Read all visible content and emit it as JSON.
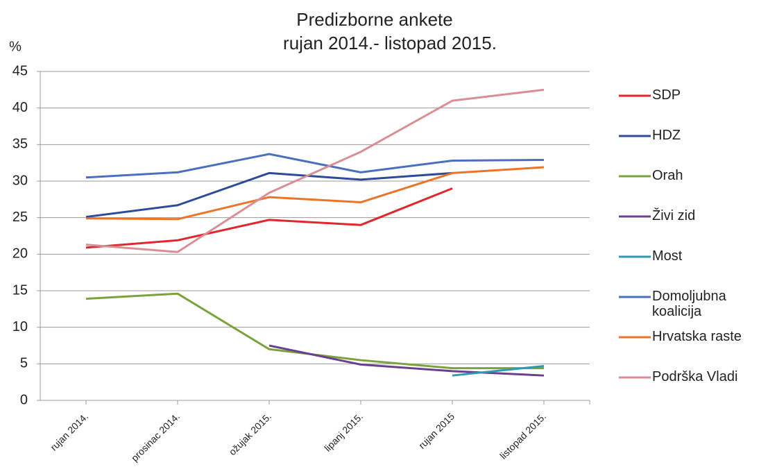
{
  "chart_data": {
    "type": "line",
    "title": [
      "Predizborne ankete",
      "rujan 2014.- listopad 2015."
    ],
    "y_label": "%",
    "categories": [
      "rujan 2014.",
      "prosinac 2014.",
      "ožujak 2015.",
      "lipanj 2015.",
      "rujan 2015",
      "listopad 2015."
    ],
    "series": [
      {
        "name": "SDP",
        "color": "#e3262b",
        "values": [
          20.9,
          21.9,
          24.7,
          24.0,
          29.0,
          null
        ]
      },
      {
        "name": "HDZ",
        "color": "#2e4a9b",
        "values": [
          25.1,
          26.7,
          31.1,
          30.2,
          31.1,
          null
        ]
      },
      {
        "name": "Orah",
        "color": "#7ba33c",
        "values": [
          13.9,
          14.6,
          7.0,
          5.5,
          4.4,
          4.4
        ]
      },
      {
        "name": "Živi zid",
        "color": "#6b3f8f",
        "values": [
          null,
          null,
          7.5,
          4.9,
          4.0,
          3.4
        ]
      },
      {
        "name": "Most",
        "color": "#2f9ab0",
        "values": [
          null,
          null,
          null,
          null,
          3.4,
          4.7
        ]
      },
      {
        "name": "Domoljubna koalicija",
        "color": "#4a6fbd",
        "values": [
          30.5,
          31.2,
          33.7,
          31.2,
          32.8,
          32.9
        ]
      },
      {
        "name": "Hrvatska raste",
        "color": "#ed7426",
        "values": [
          24.9,
          24.8,
          27.8,
          27.1,
          31.1,
          31.9
        ]
      },
      {
        "name": "Podrška Vladi",
        "color": "#d98e94",
        "values": [
          21.3,
          20.3,
          28.4,
          34.0,
          41.0,
          42.5
        ]
      }
    ],
    "ylim": [
      0,
      45
    ],
    "yticks": [
      0,
      5,
      10,
      15,
      20,
      25,
      30,
      35,
      40,
      45
    ],
    "grid": true,
    "legend": "right"
  }
}
